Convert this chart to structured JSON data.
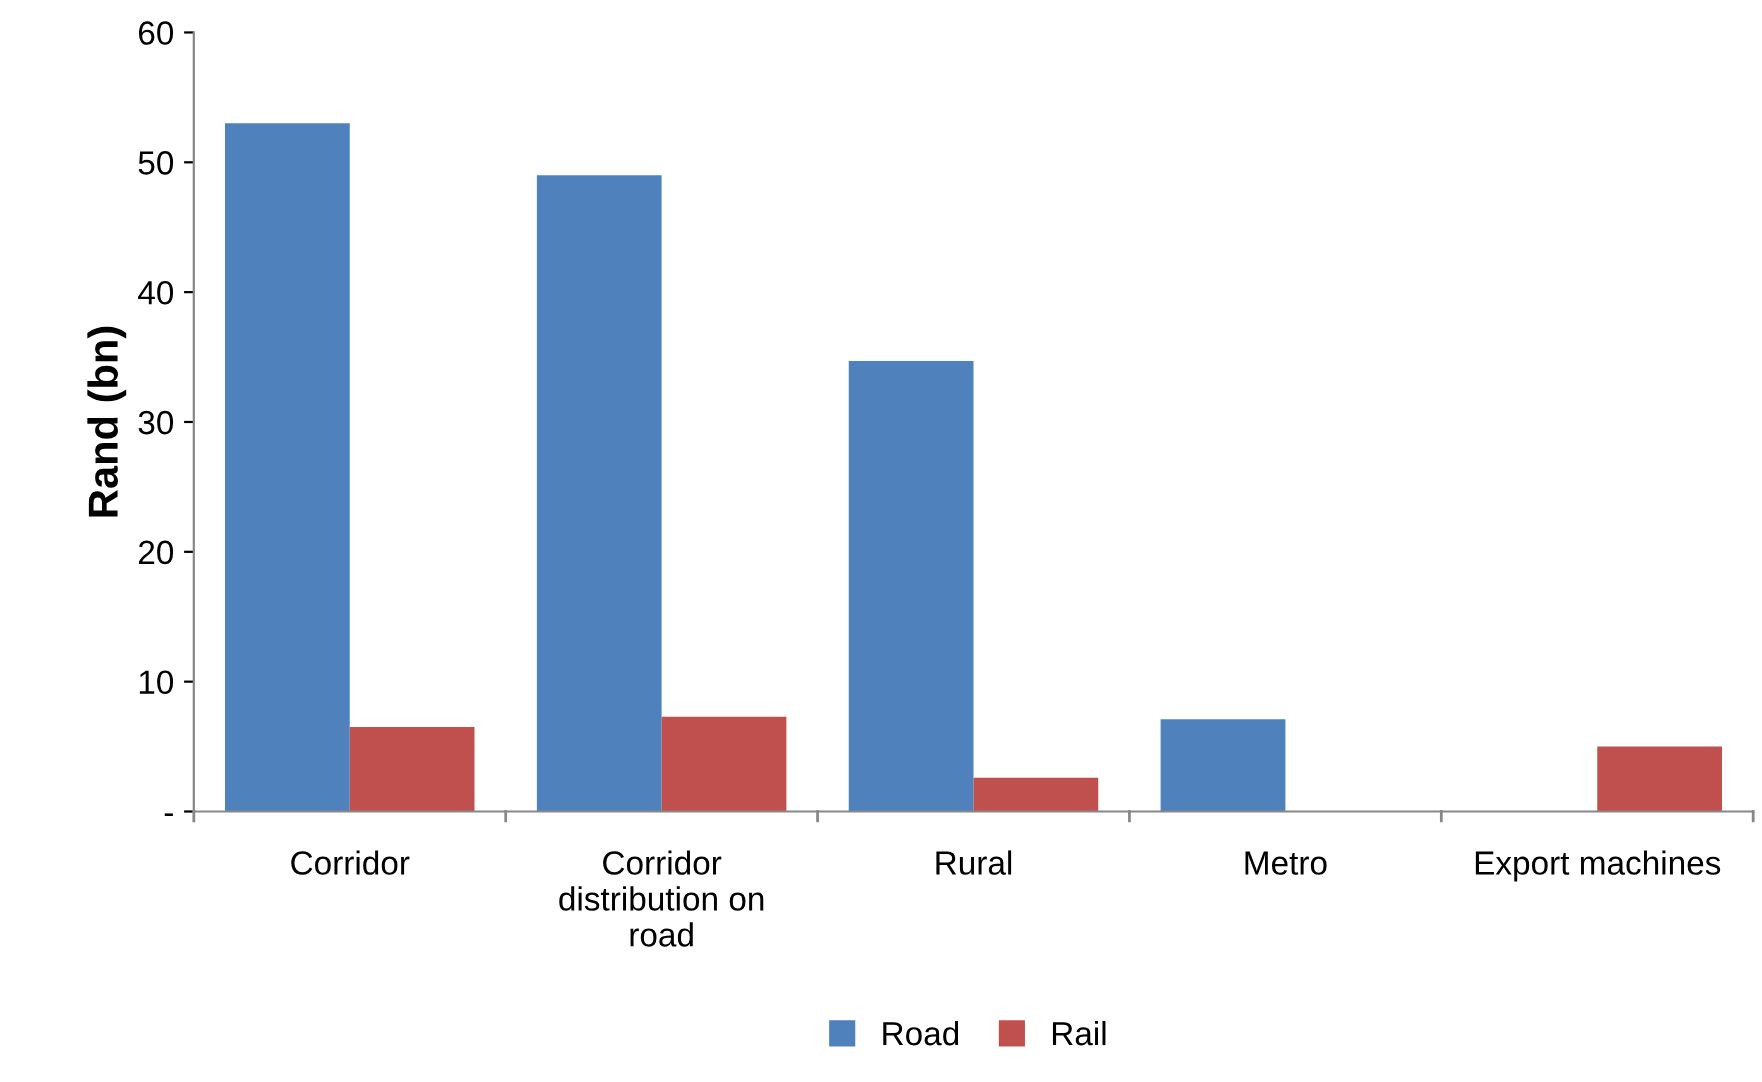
{
  "chart_data": {
    "type": "bar",
    "ylabel": "Rand (bn)",
    "categories": [
      "Corridor",
      "Corridor\ndistribution on\nroad",
      "Rural",
      "Metro",
      "Export machines"
    ],
    "series": [
      {
        "name": "Road",
        "color": "#4f81bd",
        "values": [
          53,
          49,
          34.7,
          7.1,
          0
        ]
      },
      {
        "name": "Rail",
        "color": "#c0504d",
        "values": [
          6.5,
          7.3,
          2.6,
          0,
          5.0
        ]
      }
    ],
    "ylim": [
      0,
      60
    ],
    "yticks": [
      {
        "value": 0,
        "label": "-"
      },
      10,
      20,
      30,
      40,
      50,
      60
    ],
    "grid": false,
    "legend": "bottom"
  }
}
